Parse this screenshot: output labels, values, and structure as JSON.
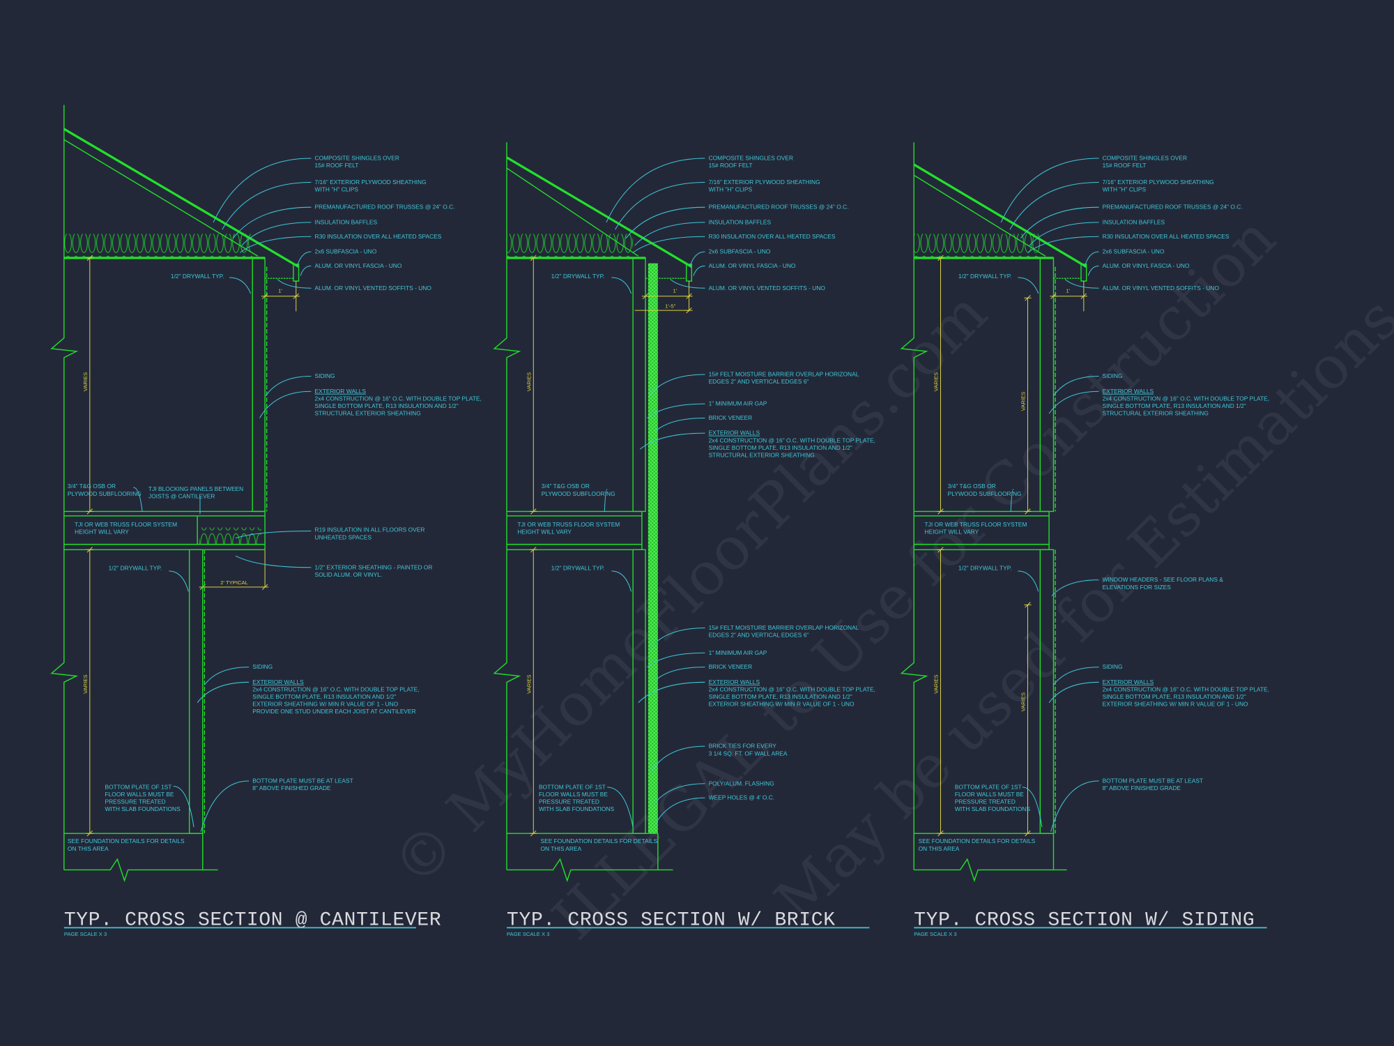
{
  "colors": {
    "background": "#232838",
    "linework": "#22e02a",
    "notes": "#3fc8d8",
    "dimensions": "#d8d040",
    "titles": "#d9dbe0"
  },
  "watermark": {
    "lines": [
      "© MyHomeFloorPlans.com",
      "ILLEGAL to Use for Construction",
      "May be used for Estimations"
    ]
  },
  "panels": [
    {
      "title": "TYP. CROSS SECTION @ CANTILEVER",
      "scale": "PAGE SCALE X 3",
      "dims": {
        "overhang": "1'",
        "cantilever": "2' TYPICAL",
        "varies_upper": "VARIES",
        "varies_lower": "VARIES"
      },
      "notes": {
        "roof_shingles": [
          "COMPOSITE SHINGLES OVER",
          "15# ROOF FELT"
        ],
        "roof_sheathing": [
          "7/16\" EXTERIOR PLYWOOD SHEATHING",
          "WITH \"H\" CLIPS"
        ],
        "roof_trusses": [
          "PREMANUFACTURED ROOF TRUSSES @ 24\" O.C."
        ],
        "baffles": [
          "INSULATION BAFFLES"
        ],
        "r30": [
          "R30 INSULATION OVER ALL HEATED SPACES"
        ],
        "subfascia": [
          "2x6 SUBFASCIA - UNO"
        ],
        "fascia": [
          "ALUM. OR VINYL FASCIA - UNO"
        ],
        "soffits": [
          "ALUM. OR VINYL VENTED SOFFITS - UNO"
        ],
        "drywall_upper": [
          "1/2\" DRYWALL TYP."
        ],
        "siding_upper": [
          "SIDING"
        ],
        "exterior_walls_upper": [
          "EXTERIOR WALLS",
          "2x4 CONSTRUCTION @ 16\" O.C. WITH DOUBLE TOP PLATE,",
          "SINGLE BOTTOM PLATE, R13 INSULATION AND 1/2\"",
          "STRUCTURAL EXTERIOR SHEATHING"
        ],
        "subfloor": [
          "3/4\" T&G OSB OR",
          "PLYWOOD SUBFLOORING"
        ],
        "blocking": [
          "TJI BLOCKING PANELS BETWEEN",
          "JOISTS @ CANTILEVER"
        ],
        "floor_system": [
          "TJI OR WEB TRUSS FLOOR SYSTEM",
          "HEIGHT WILL VARY"
        ],
        "r19": [
          "R19 INSULATION IN ALL FLOORS OVER",
          "UNHEATED SPACES"
        ],
        "soffit_sheathing": [
          "1/2\" EXTERIOR SHEATHING - PAINTED OR",
          "SOLID ALUM. OR VINYL."
        ],
        "drywall_lower": [
          "1/2\" DRYWALL TYP."
        ],
        "siding_lower": [
          "SIDING"
        ],
        "exterior_walls_lower": [
          "EXTERIOR WALLS",
          "2x4 CONSTRUCTION @ 16\" O.C. WITH DOUBLE TOP PLATE,",
          "SINGLE BOTTOM PLATE, R13 INSULATION AND 1/2\"",
          "EXTERIOR SHEATHING W/ MIN R VALUE OF 1 - UNO",
          "PROVIDE ONE STUD UNDER EACH JOIST AT CANTILEVER"
        ],
        "bottom_plate": [
          "BOTTOM PLATE OF 1ST",
          "FLOOR WALLS MUST BE",
          "PRESSURE TREATED",
          "WITH SLAB FOUNDATIONS"
        ],
        "grade": [
          "BOTTOM PLATE MUST BE AT LEAST",
          "8\" ABOVE FINISHED GRADE"
        ],
        "foundation": [
          "SEE FOUNDATION DETAILS FOR DETAILS",
          "ON THIS AREA"
        ]
      }
    },
    {
      "title": "TYP. CROSS SECTION W/ BRICK",
      "scale": "PAGE SCALE X 3",
      "dims": {
        "overhang": "1'",
        "overhang_brick": "1'-5\"",
        "varies_upper": "VARIES",
        "varies_lower": "VARIES"
      },
      "notes": {
        "roof_shingles": [
          "COMPOSITE SHINGLES OVER",
          "15# ROOF FELT"
        ],
        "roof_sheathing": [
          "7/16\" EXTERIOR PLYWOOD SHEATHING",
          "WITH \"H\" CLIPS"
        ],
        "roof_trusses": [
          "PREMANUFACTURED ROOF TRUSSES @ 24\" O.C."
        ],
        "baffles": [
          "INSULATION BAFFLES"
        ],
        "r30": [
          "R30 INSULATION OVER ALL HEATED SPACES"
        ],
        "subfascia": [
          "2x6 SUBFASCIA - UNO"
        ],
        "fascia": [
          "ALUM. OR VINYL FASCIA - UNO"
        ],
        "soffits": [
          "ALUM. OR VINYL VENTED SOFFITS - UNO"
        ],
        "drywall_upper": [
          "1/2\" DRYWALL TYP."
        ],
        "felt_upper": [
          "15# FELT MOISTURE BARRIER OVERLAP HORIZONAL",
          "EDGES 2\" AND VERTICAL EDGES 6\""
        ],
        "air_gap_upper": [
          "1\" MINIMUM AIR GAP"
        ],
        "brick_upper": [
          "BRICK VENEER"
        ],
        "exterior_walls_upper": [
          "EXTERIOR WALLS",
          "2x4 CONSTRUCTION @ 16\" O.C. WITH DOUBLE TOP PLATE,",
          "SINGLE BOTTOM PLATE, R13 INSULATION AND 1/2\"",
          "STRUCTURAL EXTERIOR SHEATHING"
        ],
        "subfloor": [
          "3/4\" T&G OSB OR",
          "PLYWOOD SUBFLOORING"
        ],
        "floor_system": [
          "TJI OR WEB TRUSS FLOOR SYSTEM",
          "HEIGHT WILL VARY"
        ],
        "drywall_lower": [
          "1/2\" DRYWALL TYP."
        ],
        "felt_lower": [
          "15# FELT MOISTURE BARRIER OVERLAP HORIZONAL",
          "EDGES 2\" AND VERTICAL EDGES 6\""
        ],
        "air_gap_lower": [
          "1\" MINIMUM AIR GAP"
        ],
        "brick_lower": [
          "BRICK VENEER"
        ],
        "exterior_walls_lower": [
          "EXTERIOR WALLS",
          "2x4 CONSTRUCTION @ 16\" O.C. WITH DOUBLE TOP PLATE,",
          "SINGLE BOTTOM PLATE, R13 INSULATION AND 1/2\"",
          "EXTERIOR SHEATHING W/ MIN R VALUE OF 1 - UNO"
        ],
        "brick_ties": [
          "BRICK TIES FOR EVERY",
          "3 1/4 SQ. FT. OF WALL AREA"
        ],
        "flashing": [
          "POLY/ALUM. FLASHING"
        ],
        "weep_holes": [
          "WEEP HOLES @ 4' O.C."
        ],
        "bottom_plate": [
          "BOTTOM PLATE OF 1ST",
          "FLOOR WALLS MUST BE",
          "PRESSURE TREATED",
          "WITH SLAB FOUNDATIONS"
        ],
        "foundation": [
          "SEE FOUNDATION DETAILS FOR DETAILS",
          "ON THIS AREA"
        ]
      }
    },
    {
      "title": "TYP. CROSS SECTION W/ SIDING",
      "scale": "PAGE SCALE X 3",
      "dims": {
        "overhang": "1'",
        "varies_upper": "VARIES",
        "varies_upper_window": "VARIES",
        "varies_lower": "VARIES",
        "varies_lower_window": "VARIES"
      },
      "notes": {
        "roof_shingles": [
          "COMPOSITE SHINGLES OVER",
          "15# ROOF FELT"
        ],
        "roof_sheathing": [
          "7/16\" EXTERIOR PLYWOOD SHEATHING",
          "WITH \"H\" CLIPS"
        ],
        "roof_trusses": [
          "PREMANUFACTURED ROOF TRUSSES @ 24\" O.C."
        ],
        "baffles": [
          "INSULATION BAFFLES"
        ],
        "r30": [
          "R30 INSULATION OVER ALL HEATED SPACES"
        ],
        "subfascia": [
          "2x6 SUBFASCIA - UNO"
        ],
        "fascia": [
          "ALUM. OR VINYL FASCIA - UNO"
        ],
        "soffits": [
          "ALUM. OR VINYL VENTED SOFFITS - UNO"
        ],
        "drywall_upper": [
          "1/2\" DRYWALL TYP."
        ],
        "siding_upper": [
          "SIDING"
        ],
        "exterior_walls_upper": [
          "EXTERIOR WALLS",
          "2x4 CONSTRUCTION @ 16\" O.C. WITH DOUBLE TOP PLATE,",
          "SINGLE BOTTOM PLATE, R13 INSULATION AND 1/2\"",
          "STRUCTURAL EXTERIOR SHEATHING"
        ],
        "subfloor": [
          "3/4\" T&G OSB OR",
          "PLYWOOD SUBFLOORING"
        ],
        "floor_system": [
          "TJI OR WEB TRUSS FLOOR SYSTEM",
          "HEIGHT WILL VARY"
        ],
        "drywall_lower": [
          "1/2\" DRYWALL TYP."
        ],
        "window_headers": [
          "WINDOW HEADERS - SEE FLOOR PLANS &",
          "ELEVATIONS FOR SIZES"
        ],
        "siding_lower": [
          "SIDING"
        ],
        "exterior_walls_lower": [
          "EXTERIOR WALLS",
          "2x4 CONSTRUCTION @ 16\" O.C. WITH DOUBLE TOP PLATE,",
          "SINGLE BOTTOM PLATE, R13 INSULATION AND 1/2\"",
          "EXTERIOR SHEATHING W/ MIN R VALUE OF 1 - UNO"
        ],
        "bottom_plate": [
          "BOTTOM PLATE OF 1ST",
          "FLOOR WALLS MUST BE",
          "PRESSURE TREATED",
          "WITH SLAB FOUNDATIONS"
        ],
        "grade": [
          "BOTTOM PLATE MUST BE AT LEAST",
          "8\" ABOVE FINISHED GRADE"
        ],
        "foundation": [
          "SEE FOUNDATION DETAILS FOR DETAILS",
          "ON THIS AREA"
        ]
      }
    }
  ]
}
